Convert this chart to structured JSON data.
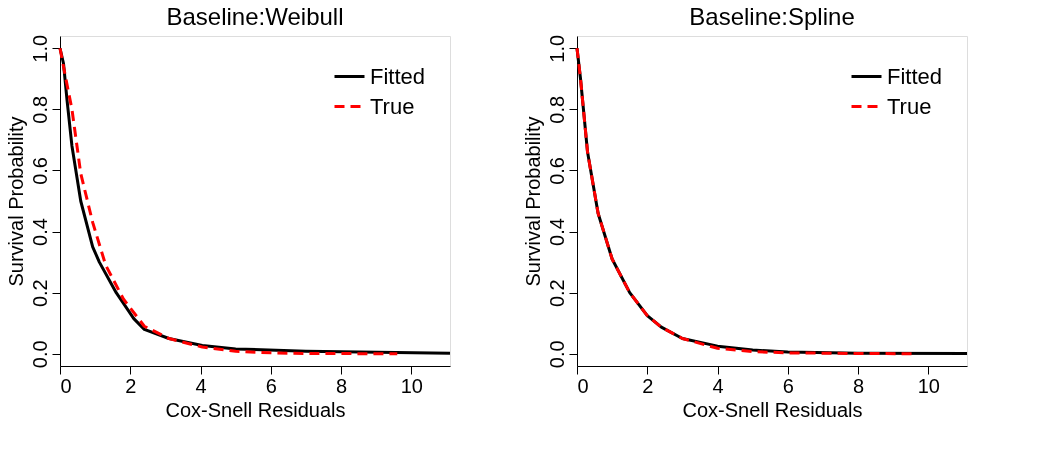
{
  "chart_data": [
    {
      "type": "line",
      "title": "Baseline:Weibull",
      "xlabel": "Cox-Snell Residuals",
      "ylabel": "Survival Probability",
      "xlim": [
        0,
        11.1
      ],
      "ylim": [
        -0.04,
        1.04
      ],
      "xticks": [
        0,
        2,
        4,
        6,
        8,
        10
      ],
      "yticks": [
        {
          "value": 0,
          "label": "0.0"
        },
        {
          "value": 0.2,
          "label": "0.2"
        },
        {
          "value": 0.4,
          "label": "0.4"
        },
        {
          "value": 0.6,
          "label": "0.6"
        },
        {
          "value": 0.8,
          "label": "0.8"
        },
        {
          "value": 1,
          "label": "1.0"
        }
      ],
      "grid": false,
      "legend": "top right",
      "marker": "none",
      "series": [
        {
          "name": "Fitted",
          "color": "#000000",
          "line_style": "solid",
          "x": [
            0,
            0.1,
            0.2,
            0.34,
            0.59,
            0.93,
            1.12,
            1.6,
            2.1,
            2.4,
            3.1,
            4.05,
            5,
            7,
            11.1
          ],
          "values": [
            1.0,
            0.95,
            0.83,
            0.68,
            0.5,
            0.35,
            0.3,
            0.2,
            0.115,
            0.08,
            0.05,
            0.027,
            0.016,
            0.008,
            0.002
          ]
        },
        {
          "name": "True",
          "color": "#ff0000",
          "line_style": "dashed",
          "x": [
            0,
            0.15,
            0.34,
            0.59,
            0.93,
            1.3,
            1.8,
            2.4,
            3.1,
            4.05,
            5,
            6,
            7,
            9.6
          ],
          "values": [
            1.0,
            0.91,
            0.8,
            0.59,
            0.43,
            0.29,
            0.18,
            0.09,
            0.05,
            0.022,
            0.008,
            0.003,
            0.001,
            0.0
          ]
        }
      ]
    },
    {
      "type": "line",
      "title": "Baseline:Spline",
      "xlabel": "Cox-Snell Residuals",
      "ylabel": "Survival Probability",
      "xlim": [
        0,
        11.1
      ],
      "ylim": [
        -0.04,
        1.04
      ],
      "xticks": [
        0,
        2,
        4,
        6,
        8,
        10
      ],
      "yticks": [
        {
          "value": 0,
          "label": "0.0"
        },
        {
          "value": 0.2,
          "label": "0.2"
        },
        {
          "value": 0.4,
          "label": "0.4"
        },
        {
          "value": 0.6,
          "label": "0.6"
        },
        {
          "value": 0.8,
          "label": "0.8"
        },
        {
          "value": 1,
          "label": "1.0"
        }
      ],
      "grid": false,
      "legend": "top right",
      "marker": "none",
      "series": [
        {
          "name": "Fitted",
          "color": "#000000",
          "line_style": "solid",
          "x": [
            0,
            0.1,
            0.3,
            0.6,
            1.0,
            1.5,
            2.0,
            2.4,
            3,
            4,
            5,
            6,
            8,
            11.1
          ],
          "values": [
            1.0,
            0.9,
            0.66,
            0.46,
            0.31,
            0.2,
            0.125,
            0.087,
            0.05,
            0.025,
            0.012,
            0.006,
            0.002,
            0.001
          ]
        },
        {
          "name": "True",
          "color": "#ff0000",
          "line_style": "dashed",
          "x": [
            0,
            0.1,
            0.3,
            0.6,
            1.0,
            1.5,
            2.0,
            2.4,
            3,
            4,
            5,
            6,
            8,
            9.6
          ],
          "values": [
            1.0,
            0.9,
            0.66,
            0.46,
            0.31,
            0.2,
            0.125,
            0.087,
            0.05,
            0.018,
            0.007,
            0.003,
            0.001,
            0.0
          ]
        }
      ]
    }
  ]
}
